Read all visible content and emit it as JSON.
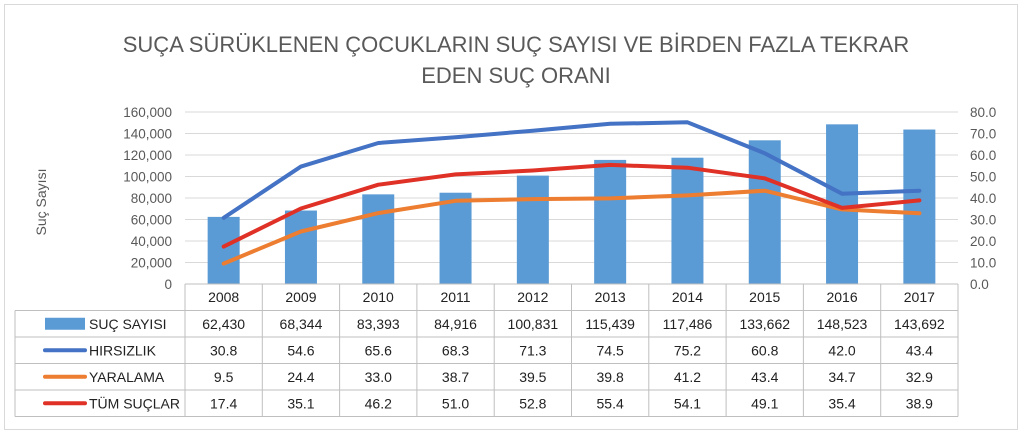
{
  "chart_data": {
    "type": "bar",
    "title_lines": [
      "SUÇA SÜRÜKLENEN ÇOCUKLARIN SUÇ SAYISI VE BİRDEN FAZLA TEKRAR",
      "EDEN SUÇ ORANI"
    ],
    "ylabel": "Suç Sayısı",
    "categories": [
      "2008",
      "2009",
      "2010",
      "2011",
      "2012",
      "2013",
      "2014",
      "2015",
      "2016",
      "2017"
    ],
    "y_left": {
      "min": 0,
      "max": 160000,
      "step": 20000,
      "ticks": [
        "0",
        "20,000",
        "40,000",
        "60,000",
        "80,000",
        "100,000",
        "120,000",
        "140,000",
        "160,000"
      ]
    },
    "y_right": {
      "min": 0,
      "max": 80,
      "step": 10,
      "ticks": [
        "0.0",
        "10.0",
        "20.0",
        "30.0",
        "40.0",
        "50.0",
        "60.0",
        "70.0",
        "80.0"
      ]
    },
    "grid": true,
    "legend": "data-table",
    "series": [
      {
        "name": "SUÇ SAYISI",
        "type": "bar",
        "axis": "left",
        "color": "#5b9bd5",
        "values": [
          62430,
          68344,
          83393,
          84916,
          100831,
          115439,
          117486,
          133662,
          148523,
          143692
        ],
        "labels": [
          "62,430",
          "68,344",
          "83,393",
          "84,916",
          "100,831",
          "115,439",
          "117,486",
          "133,662",
          "148,523",
          "143,692"
        ]
      },
      {
        "name": "HIRSIZLIK",
        "type": "line",
        "axis": "right",
        "color": "#4472c4",
        "values": [
          30.8,
          54.6,
          65.6,
          68.3,
          71.3,
          74.5,
          75.2,
          60.8,
          42.0,
          43.4
        ],
        "labels": [
          "30.8",
          "54.6",
          "65.6",
          "68.3",
          "71.3",
          "74.5",
          "75.2",
          "60.8",
          "42.0",
          "43.4"
        ]
      },
      {
        "name": "YARALAMA",
        "type": "line",
        "axis": "right",
        "color": "#ed7d31",
        "values": [
          9.5,
          24.4,
          33.0,
          38.7,
          39.5,
          39.8,
          41.2,
          43.4,
          34.7,
          32.9
        ],
        "labels": [
          "9.5",
          "24.4",
          "33.0",
          "38.7",
          "39.5",
          "39.8",
          "41.2",
          "43.4",
          "34.7",
          "32.9"
        ]
      },
      {
        "name": "TÜM SUÇLAR",
        "type": "line",
        "axis": "right",
        "color": "#e03127",
        "values": [
          17.4,
          35.1,
          46.2,
          51.0,
          52.8,
          55.4,
          54.1,
          49.1,
          35.4,
          38.9
        ],
        "labels": [
          "17.4",
          "35.1",
          "46.2",
          "51.0",
          "52.8",
          "55.4",
          "54.1",
          "49.1",
          "35.4",
          "38.9"
        ]
      }
    ]
  }
}
